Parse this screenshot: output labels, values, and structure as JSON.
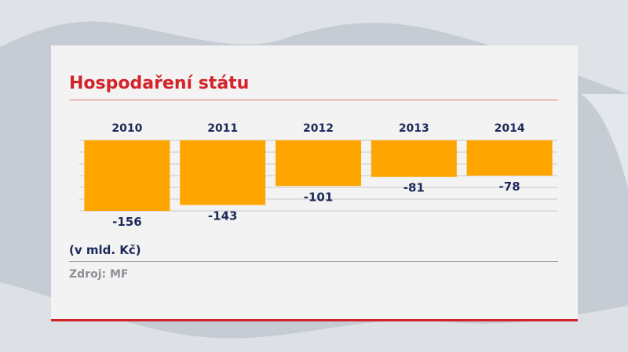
{
  "header": {
    "title": "Hospodaření státu"
  },
  "footer": {
    "unit_note": "(v mld. Kč)",
    "source": "Zdroj: MF"
  },
  "colors": {
    "accent": "#d2232a",
    "bar": "#ffa500",
    "text": "#1c2a5a",
    "muted": "#8d9096"
  },
  "chart_data": {
    "type": "bar",
    "title": "Hospodaření státu",
    "categories": [
      "2010",
      "2011",
      "2012",
      "2013",
      "2014"
    ],
    "values": [
      -156,
      -143,
      -101,
      -81,
      -78
    ],
    "ylim": [
      -156,
      0
    ],
    "grid": true,
    "xlabel": "",
    "ylabel": ""
  }
}
